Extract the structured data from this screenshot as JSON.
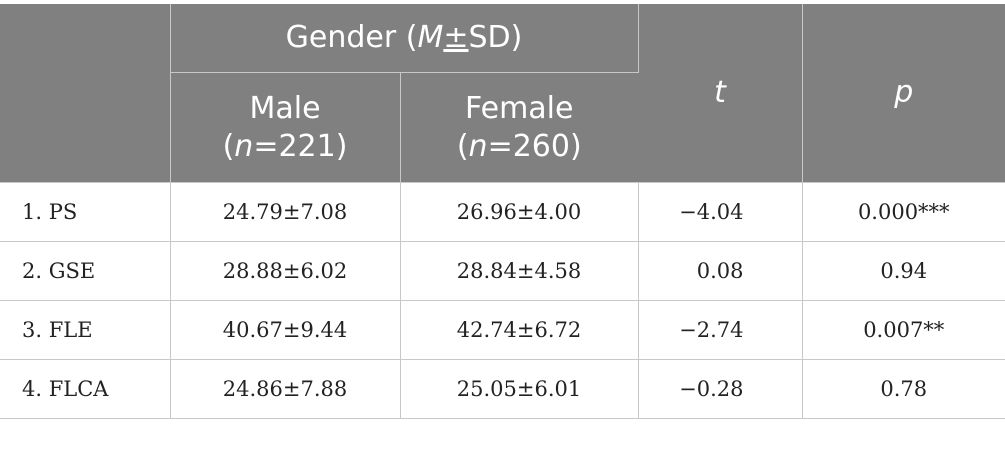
{
  "header": {
    "gender_prefix": "Gender (",
    "gender_M": "M",
    "gender_pm": "±",
    "gender_suffix": "SD)",
    "male_label": "Male",
    "male_n_open": "(",
    "male_n_var": "n",
    "male_n_value": "=221)",
    "female_label": "Female",
    "female_n_open": "(",
    "female_n_var": "n",
    "female_n_value": "=260)",
    "t_label": "t",
    "p_label": "p"
  },
  "rows": [
    {
      "label": "1. PS",
      "male": "24.79±7.08",
      "female": "26.96±4.00",
      "t": "−4.04",
      "p": "0.000***"
    },
    {
      "label": "2. GSE",
      "male": "28.88±6.02",
      "female": "28.84±4.58",
      "t": "0.08",
      "p": "0.94"
    },
    {
      "label": "3. FLE",
      "male": "40.67±9.44",
      "female": "42.74±6.72",
      "t": "−2.74",
      "p": "0.007**"
    },
    {
      "label": "4. FLCA",
      "male": "24.86±7.88",
      "female": "25.05±6.01",
      "t": "−0.28",
      "p": "0.78"
    }
  ],
  "colors": {
    "header_bg": "#808080",
    "header_text": "#ffffff",
    "grid": "#c8c8c8"
  }
}
